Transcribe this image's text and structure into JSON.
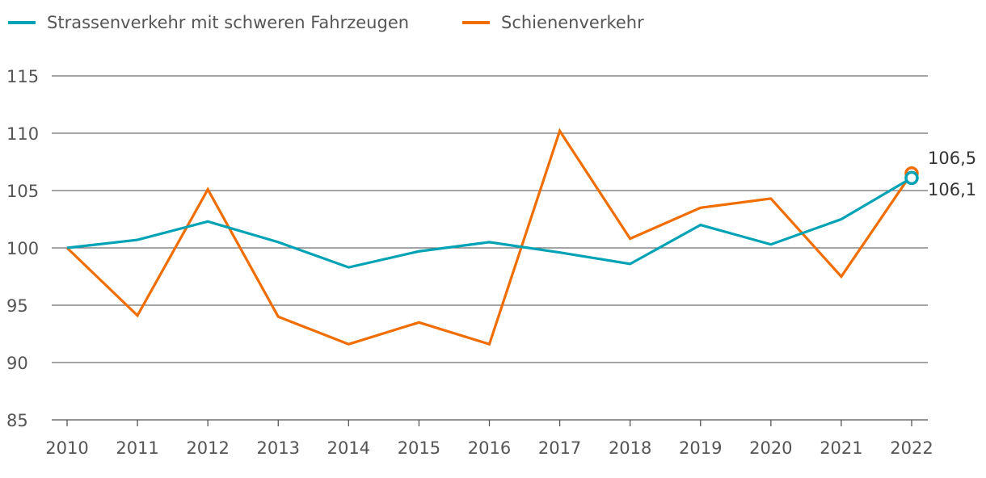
{
  "chart_data": {
    "type": "line",
    "title": "",
    "xlabel": "",
    "ylabel": "",
    "x": [
      "2010",
      "2011",
      "2012",
      "2013",
      "2014",
      "2015",
      "2016",
      "2017",
      "2018",
      "2019",
      "2020",
      "2021",
      "2022"
    ],
    "ylim": [
      85,
      115
    ],
    "yticks": [
      85,
      90,
      95,
      100,
      105,
      110,
      115
    ],
    "ytick_labels": [
      "85",
      "90",
      "95",
      "100",
      "105",
      "110",
      "115"
    ],
    "grid": true,
    "legend_position": "top-left",
    "series": [
      {
        "name": "Strassenverkehr mit schweren Fahrzeugen",
        "color": "#00a2b5",
        "values": [
          100,
          100.7,
          102.3,
          100.5,
          98.3,
          99.7,
          100.5,
          99.6,
          98.6,
          102.0,
          100.3,
          102.5,
          106.1
        ],
        "end_label": "106,1"
      },
      {
        "name": "Schienenverkehr",
        "color": "#f06e00",
        "values": [
          100,
          94.1,
          105.1,
          94.0,
          91.6,
          93.5,
          91.6,
          110.2,
          100.8,
          103.5,
          104.3,
          97.5,
          106.5
        ],
        "end_label": "106,5"
      }
    ]
  }
}
